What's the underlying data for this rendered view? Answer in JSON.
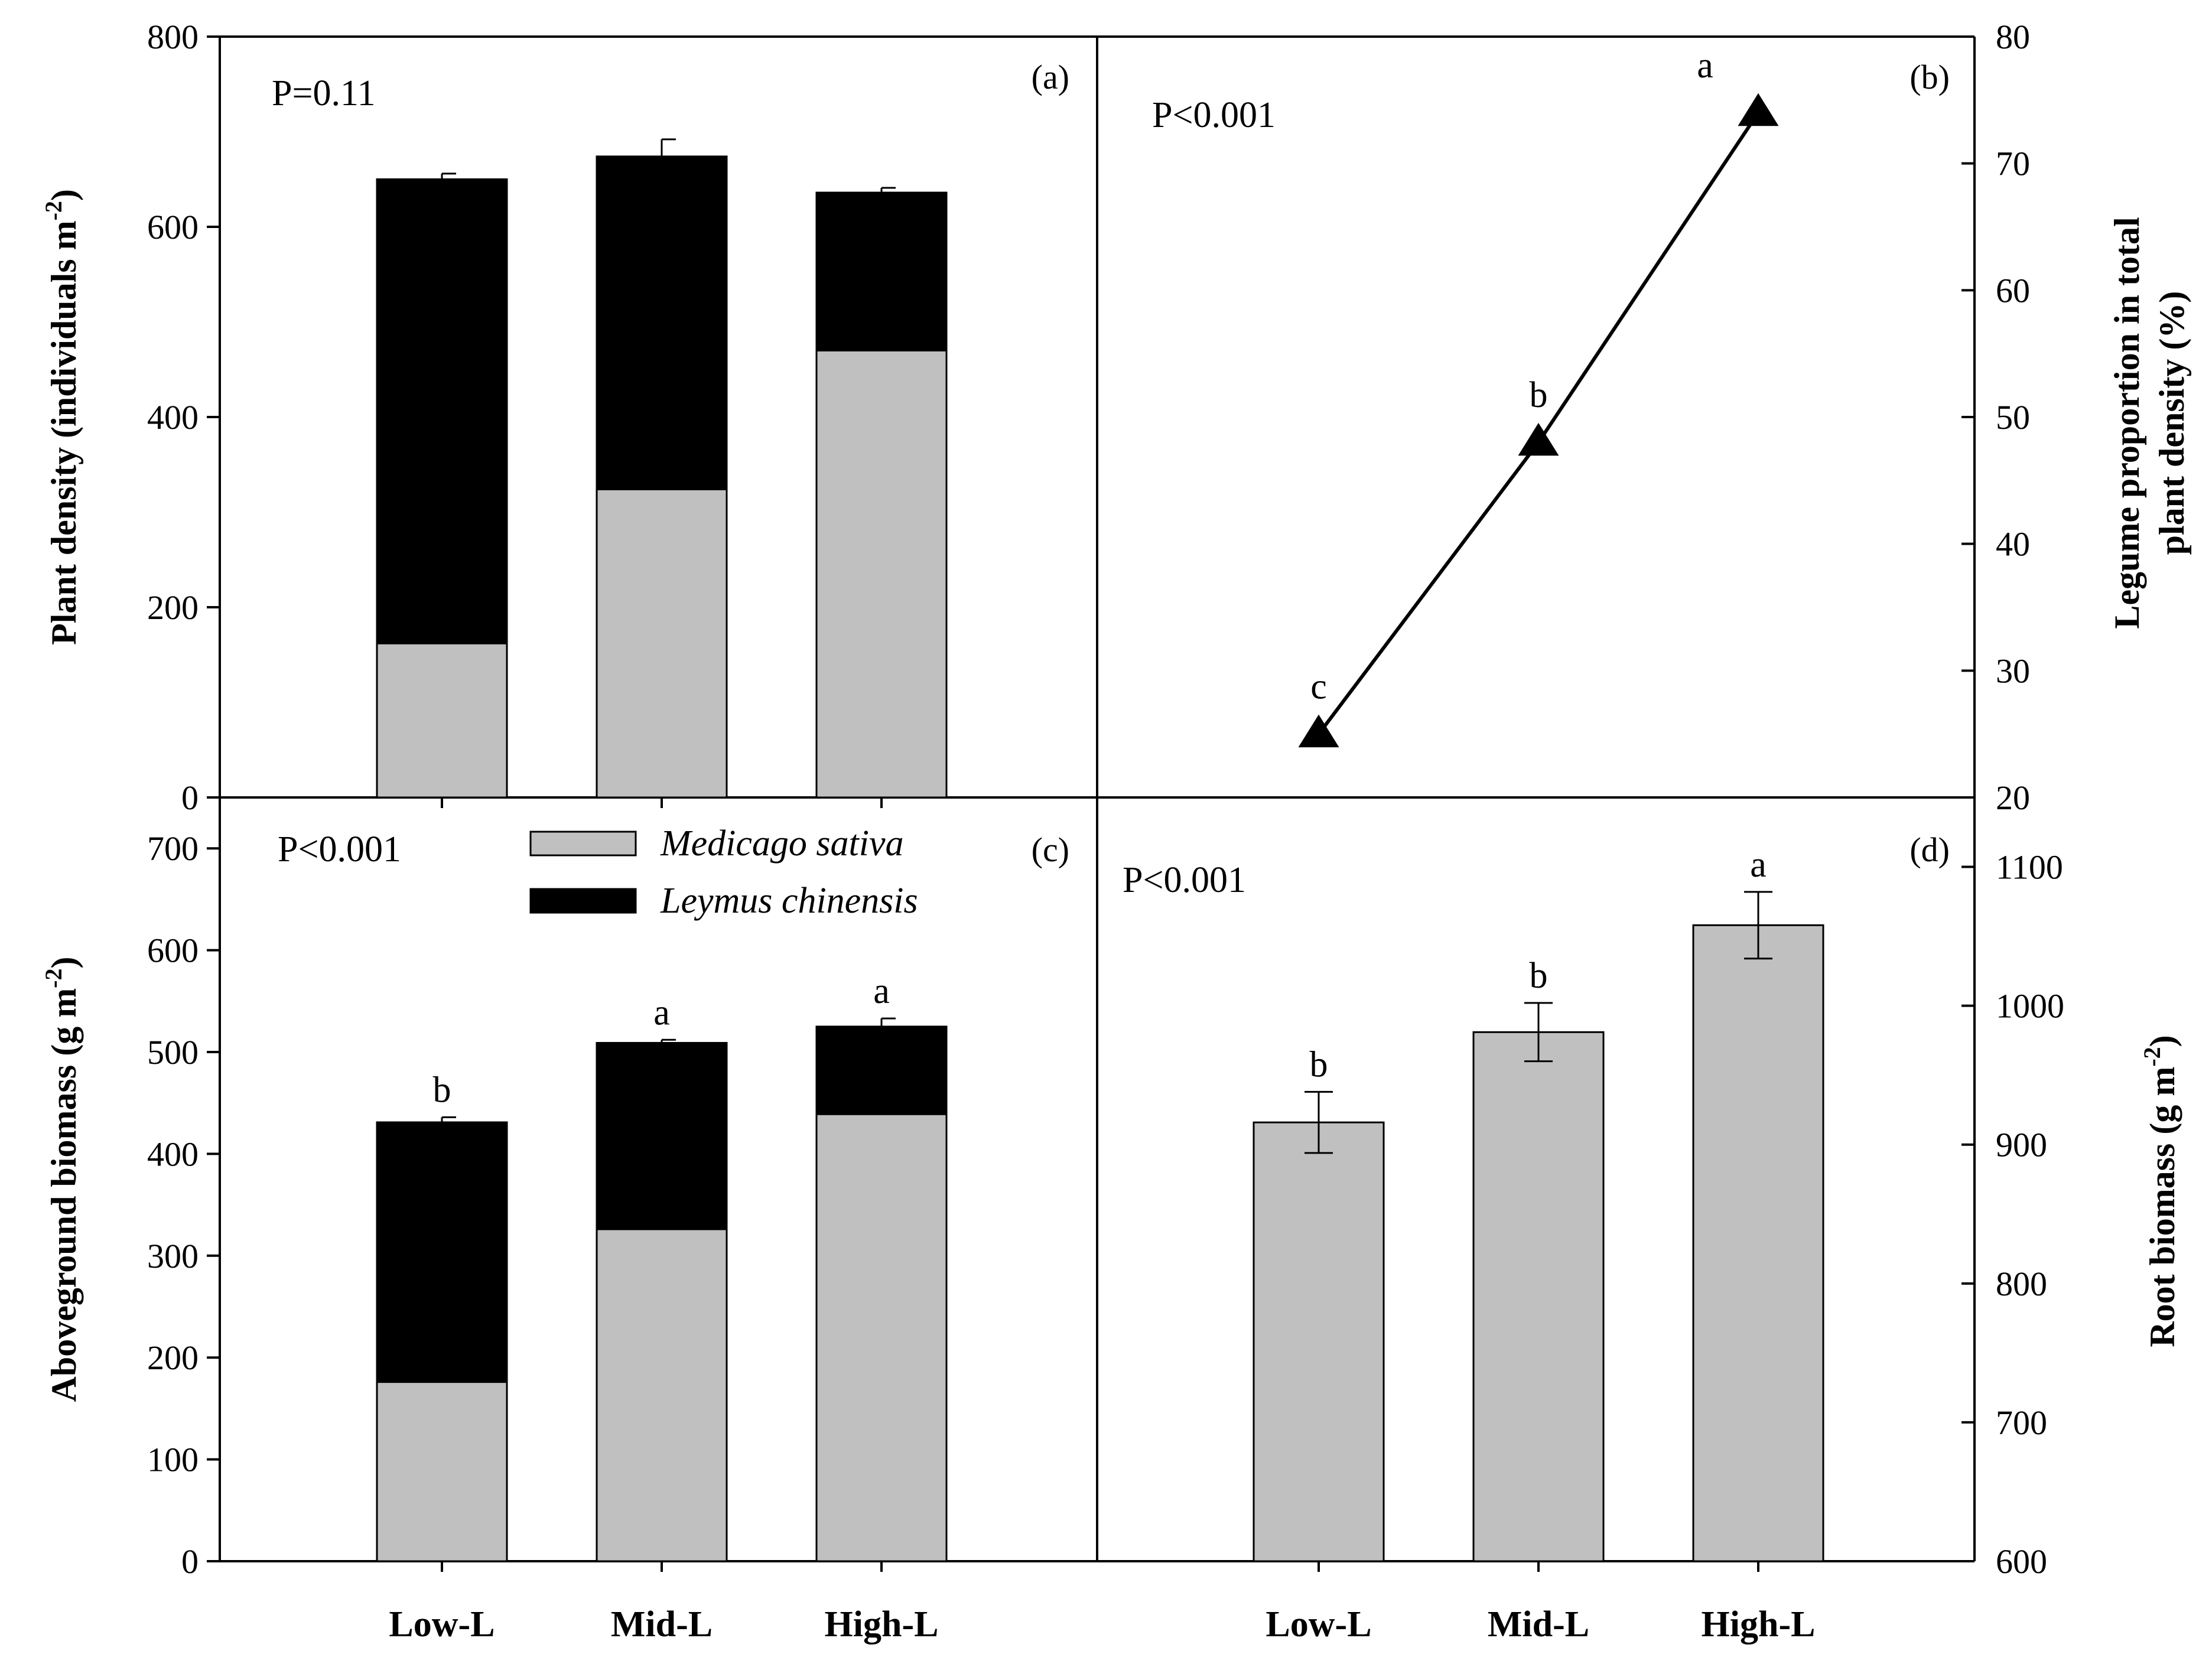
{
  "chart_data": [
    {
      "id": "a",
      "type": "bar",
      "stacked": true,
      "panel_label": "(a)",
      "p_value": "P=0.11",
      "ylabel": "Plant density (individuals m",
      "ylabel_sup": "-2",
      "ylabel_end": ")",
      "ylim": [
        0,
        800
      ],
      "yticks": [
        0,
        200,
        400,
        600,
        800
      ],
      "categories": [
        "Low-L",
        "Mid-L",
        "High-L"
      ],
      "series": [
        {
          "name": "Medicago sativa",
          "color": "#c0c0c0",
          "values": [
            162,
            324,
            470
          ]
        },
        {
          "name": "Leymus chinensis",
          "color": "#000000",
          "values": [
            488,
            350,
            166
          ]
        }
      ],
      "totals": [
        650,
        674,
        636
      ],
      "errors": [
        6,
        18,
        5
      ],
      "letters": [
        "",
        "",
        ""
      ]
    },
    {
      "id": "b",
      "type": "line",
      "panel_label": "(b)",
      "p_value": "P<0.001",
      "ylabel_line1": "Legume proportion in total",
      "ylabel_line2": "plant density (%)",
      "ylim": [
        20,
        80
      ],
      "yticks": [
        20,
        30,
        40,
        50,
        60,
        70,
        80
      ],
      "categories": [
        "Low-L",
        "Mid-L",
        "High-L"
      ],
      "values": [
        25,
        48,
        74
      ],
      "letters": [
        "c",
        "b",
        "a"
      ],
      "marker": "triangle"
    },
    {
      "id": "c",
      "type": "bar",
      "stacked": true,
      "panel_label": "(c)",
      "p_value": "P<0.001",
      "ylabel": "Aboveground biomass (g m",
      "ylabel_sup": "-2",
      "ylabel_end": ")",
      "ylim": [
        0,
        750
      ],
      "yticks": [
        0,
        100,
        200,
        300,
        400,
        500,
        600,
        700
      ],
      "categories": [
        "Low-L",
        "Mid-L",
        "High-L"
      ],
      "series": [
        {
          "name": "Medicago sativa",
          "color": "#c0c0c0",
          "values": [
            176,
            326,
            439
          ]
        },
        {
          "name": "Leymus chinensis",
          "color": "#000000",
          "values": [
            255,
            183,
            86
          ]
        }
      ],
      "totals": [
        431,
        509,
        525
      ],
      "errors": [
        5,
        3,
        8
      ],
      "letters": [
        "b",
        "a",
        "a"
      ],
      "legend": [
        "Medicago sativa",
        "Leymus chinensis"
      ]
    },
    {
      "id": "d",
      "type": "bar",
      "panel_label": "(d)",
      "p_value": "P<0.001",
      "ylabel": "Root biomass (g m",
      "ylabel_sup": "-2",
      "ylabel_end": ")",
      "ylim": [
        600,
        1150
      ],
      "yticks": [
        600,
        700,
        800,
        900,
        1000,
        1100
      ],
      "categories": [
        "Low-L",
        "Mid-L",
        "High-L"
      ],
      "color": "#c0c0c0",
      "values": [
        916,
        981,
        1058
      ],
      "errors": [
        22,
        21,
        24
      ],
      "letters": [
        "b",
        "b",
        "a"
      ]
    }
  ]
}
